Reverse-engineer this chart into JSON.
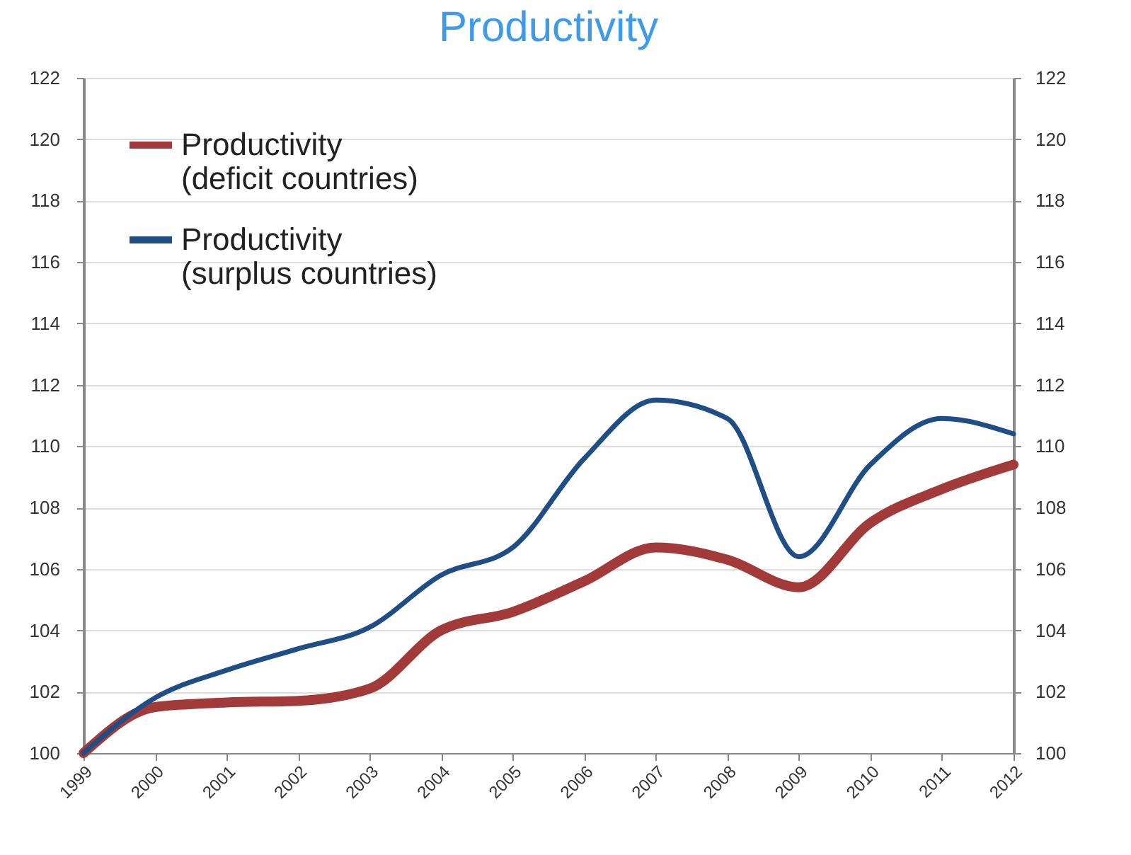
{
  "chart_data": {
    "type": "line",
    "title": "Productivity",
    "categories": [
      "1999",
      "2000",
      "2001",
      "2002",
      "2003",
      "2004",
      "2005",
      "2006",
      "2007",
      "2008",
      "2009",
      "2010",
      "2011",
      "2012"
    ],
    "series": [
      {
        "name": "Productivity (deficit countries)",
        "color": "#a33a3a",
        "values": [
          100,
          101.5,
          101.65,
          101.7,
          102.1,
          104.0,
          104.6,
          105.6,
          106.7,
          106.3,
          105.4,
          107.5,
          108.6,
          109.4
        ]
      },
      {
        "name": "Productivity (surplus countries)",
        "color": "#1f4e86",
        "values": [
          100,
          101.8,
          102.7,
          103.4,
          104.1,
          105.8,
          106.7,
          109.6,
          111.5,
          110.9,
          106.4,
          109.4,
          110.9,
          110.4
        ]
      }
    ],
    "ylim": [
      100,
      122
    ],
    "yticks": [
      100,
      102,
      104,
      106,
      108,
      110,
      112,
      114,
      116,
      118,
      120,
      122
    ],
    "y2lim": [
      100,
      122
    ],
    "y2ticks": [
      100,
      102,
      104,
      106,
      108,
      110,
      112,
      114,
      116,
      118,
      120,
      122
    ],
    "grid": "y",
    "legend": "top left",
    "marker": "none",
    "line_style": "solid"
  }
}
